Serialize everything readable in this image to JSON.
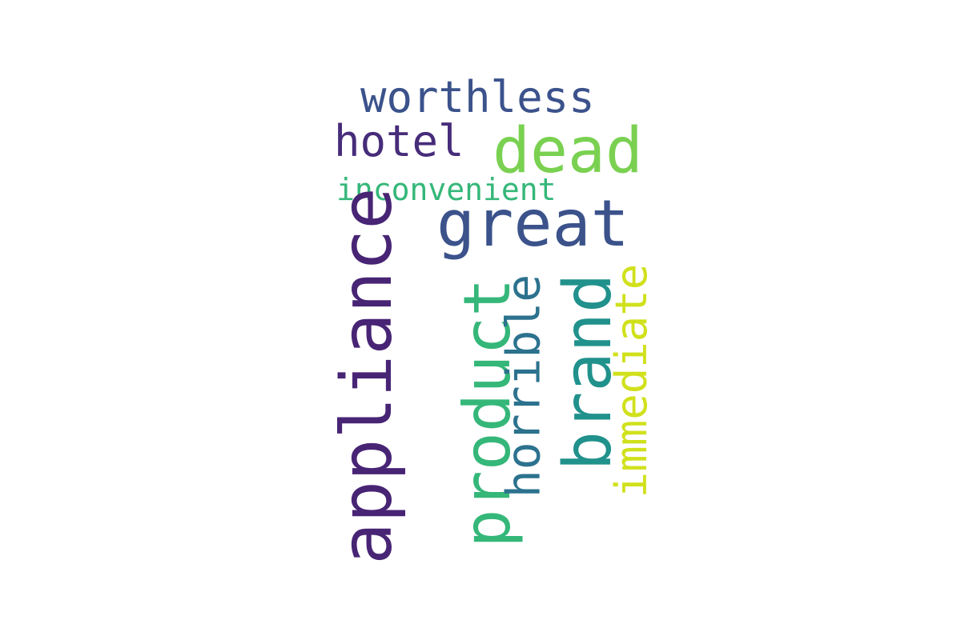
{
  "words": [
    {
      "id": "worthless",
      "text": "worthless",
      "color": "#3b528b"
    },
    {
      "id": "hotel",
      "text": "hotel",
      "color": "#472c7a"
    },
    {
      "id": "dead",
      "text": "dead",
      "color": "#7ad151"
    },
    {
      "id": "inconvenient",
      "text": "inconvenient",
      "color": "#35b779"
    },
    {
      "id": "great",
      "text": "great",
      "color": "#3b528b"
    },
    {
      "id": "appliance",
      "text": "appliance",
      "color": "#482475"
    },
    {
      "id": "product",
      "text": "product",
      "color": "#35b779"
    },
    {
      "id": "horrible",
      "text": "horrible",
      "color": "#2c728e"
    },
    {
      "id": "brand",
      "text": "brand",
      "color": "#21918c"
    },
    {
      "id": "immediate",
      "text": "immediate",
      "color": "#d0e11c"
    }
  ]
}
